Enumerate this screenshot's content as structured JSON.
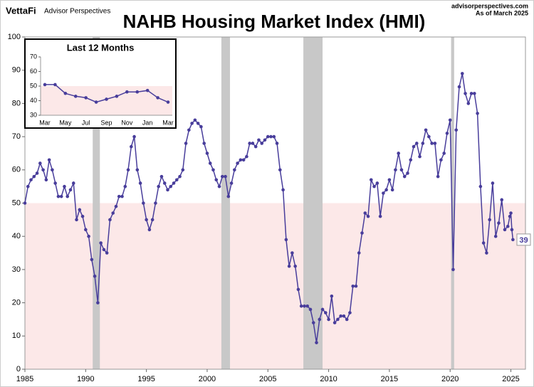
{
  "header": {
    "logo": "VettaFi",
    "brand": "Advisor Perspectives",
    "site": "advisorperspectives.com",
    "as_of": "As of March 2025"
  },
  "chart_data": [
    {
      "type": "line",
      "title": "NAHB Housing Market Index (HMI)",
      "color": "#483d9b",
      "xlim": [
        1985,
        2026.2
      ],
      "xticks": [
        1985,
        1990,
        1995,
        2000,
        2005,
        2010,
        2015,
        2020,
        2025
      ],
      "ylim": [
        0,
        100
      ],
      "yticks": [
        0,
        10,
        20,
        30,
        40,
        50,
        60,
        70,
        80,
        90,
        100
      ],
      "grid": false,
      "reference_band": [
        0,
        50
      ],
      "reference_color": "#fce8e8",
      "recessions": [
        [
          1990.58,
          1991.17
        ],
        [
          2001.17,
          2001.88
        ],
        [
          2007.92,
          2009.5
        ],
        [
          2020.08,
          2020.33
        ]
      ],
      "recession_color": "#c8c8c8",
      "x": [
        1985,
        1985.25,
        1985.5,
        1985.75,
        1986,
        1986.25,
        1986.5,
        1986.75,
        1987,
        1987.25,
        1987.5,
        1987.75,
        1988,
        1988.25,
        1988.5,
        1988.75,
        1989,
        1989.25,
        1989.5,
        1989.75,
        1990,
        1990.25,
        1990.5,
        1990.75,
        1991,
        1991.25,
        1991.5,
        1991.75,
        1992,
        1992.25,
        1992.5,
        1992.75,
        1993,
        1993.25,
        1993.5,
        1993.75,
        1994,
        1994.25,
        1994.5,
        1994.75,
        1995,
        1995.25,
        1995.5,
        1995.75,
        1996,
        1996.25,
        1996.5,
        1996.75,
        1997,
        1997.25,
        1997.5,
        1997.75,
        1998,
        1998.25,
        1998.5,
        1998.75,
        1999,
        1999.25,
        1999.5,
        1999.75,
        2000,
        2000.25,
        2000.5,
        2000.75,
        2001,
        2001.25,
        2001.5,
        2001.75,
        2002,
        2002.25,
        2002.5,
        2002.75,
        2003,
        2003.25,
        2003.5,
        2003.75,
        2004,
        2004.25,
        2004.5,
        2004.75,
        2005,
        2005.25,
        2005.5,
        2005.75,
        2006,
        2006.25,
        2006.5,
        2006.75,
        2007,
        2007.25,
        2007.5,
        2007.75,
        2008,
        2008.25,
        2008.5,
        2008.75,
        2009,
        2009.25,
        2009.5,
        2009.75,
        2010,
        2010.25,
        2010.5,
        2010.75,
        2011,
        2011.25,
        2011.5,
        2011.75,
        2012,
        2012.25,
        2012.5,
        2012.75,
        2013,
        2013.25,
        2013.5,
        2013.75,
        2014,
        2014.25,
        2014.5,
        2014.75,
        2015,
        2015.25,
        2015.5,
        2015.75,
        2016,
        2016.25,
        2016.5,
        2016.75,
        2017,
        2017.25,
        2017.5,
        2017.75,
        2018,
        2018.25,
        2018.5,
        2018.75,
        2019,
        2019.25,
        2019.5,
        2019.75,
        2020,
        2020.25,
        2020.5,
        2020.75,
        2021,
        2021.25,
        2021.5,
        2021.75,
        2022,
        2022.25,
        2022.5,
        2022.75,
        2023,
        2023.25,
        2023.5,
        2023.75,
        2024,
        2024.25,
        2024.5,
        2024.75,
        2024.917,
        2025,
        2025.083,
        2025.167
      ],
      "values": [
        50,
        55,
        57,
        58,
        59,
        62,
        60,
        57,
        63,
        60,
        56,
        52,
        52,
        55,
        52,
        54,
        56,
        45,
        48,
        46,
        42,
        40,
        33,
        28,
        20,
        38,
        36,
        35,
        45,
        47,
        49,
        52,
        52,
        55,
        60,
        67,
        70,
        60,
        56,
        50,
        45,
        42,
        45,
        50,
        55,
        58,
        56,
        54,
        55,
        56,
        57,
        58,
        60,
        68,
        72,
        74,
        75,
        74,
        73,
        68,
        65,
        62,
        60,
        57,
        55,
        58,
        58,
        52,
        56,
        60,
        62,
        63,
        63,
        64,
        68,
        68,
        67,
        69,
        68,
        69,
        70,
        70,
        70,
        68,
        60,
        54,
        39,
        31,
        35,
        31,
        24,
        19,
        19,
        19,
        18,
        14,
        8,
        15,
        18,
        17,
        15,
        22,
        14,
        15,
        16,
        16,
        15,
        17,
        25,
        25,
        35,
        41,
        47,
        46,
        57,
        55,
        56,
        46,
        53,
        54,
        57,
        54,
        60,
        65,
        60,
        58,
        59,
        63,
        67,
        68,
        64,
        68,
        72,
        70,
        68,
        68,
        58,
        63,
        65,
        71,
        75,
        30,
        72,
        85,
        89,
        83,
        80,
        83,
        83,
        77,
        55,
        38,
        35,
        45,
        56,
        40,
        44,
        51,
        42,
        43,
        46,
        47,
        42,
        39
      ]
    },
    {
      "type": "line",
      "title": "Last 12 Months",
      "color": "#483d9b",
      "categories": [
        "Mar",
        null,
        "May",
        null,
        "Jul",
        null,
        "Sep",
        null,
        "Nov",
        null,
        "Jan",
        null,
        "Mar"
      ],
      "values": [
        51,
        51,
        45,
        43,
        42,
        39,
        41,
        43,
        46,
        46,
        47,
        42,
        39
      ],
      "ylim": [
        30,
        70
      ],
      "yticks": [
        30,
        40,
        50,
        60,
        70
      ],
      "reference_band": [
        30,
        50
      ],
      "reference_color": "#fce8e8"
    }
  ]
}
